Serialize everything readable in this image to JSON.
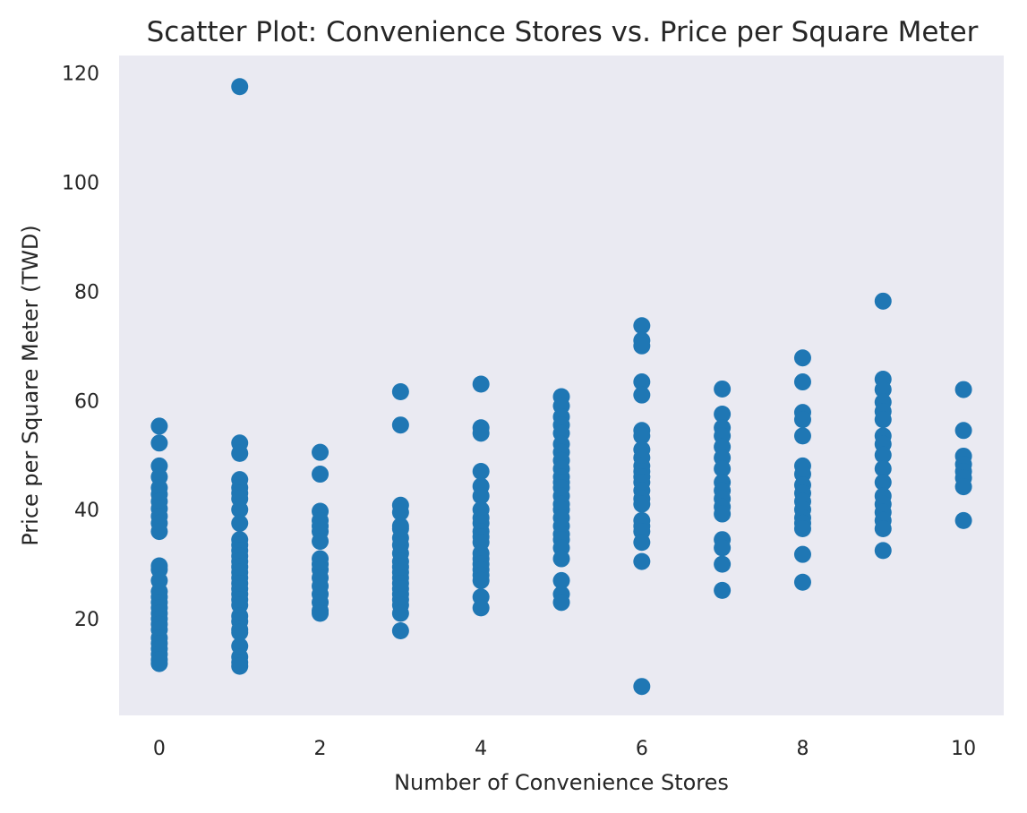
{
  "chart_data": {
    "type": "scatter",
    "title": "Scatter Plot: Convenience Stores vs. Price per Square Meter",
    "xlabel": "Number of Convenience Stores",
    "ylabel": "Price per Square Meter (TWD)",
    "xlim": [
      -0.5,
      10.5
    ],
    "ylim": [
      2.3,
      123.2
    ],
    "xticks": [
      "0",
      "2",
      "4",
      "6",
      "8",
      "10"
    ],
    "yticks": [
      "20",
      "40",
      "60",
      "80",
      "100",
      "120"
    ],
    "grid": false,
    "colors": {
      "point": "#1f77b4",
      "plot_background": "#eaeaf2"
    },
    "points": [
      {
        "x": 0,
        "y": [
          55.3,
          52.2,
          48.0,
          46.0,
          44.0,
          42.8,
          41.5,
          40.2,
          38.8,
          37.5,
          36.0,
          29.7,
          29.0,
          27.0,
          25.0,
          24.0,
          23.0,
          22.0,
          21.0,
          20.0,
          19.0,
          18.0,
          16.5,
          15.5,
          14.5,
          13.5,
          12.5,
          11.8
        ]
      },
      {
        "x": 1,
        "y": [
          117.5,
          52.2,
          50.3,
          45.5,
          44.0,
          43.0,
          42.0,
          40.0,
          37.5,
          34.5,
          33.5,
          32.5,
          31.5,
          30.5,
          29.5,
          28.5,
          27.5,
          26.5,
          25.5,
          24.5,
          23.5,
          22.5,
          20.5,
          19.5,
          18.0,
          17.5,
          15.0,
          13.0,
          12.0,
          11.3
        ]
      },
      {
        "x": 2,
        "y": [
          50.5,
          46.5,
          39.7,
          38.0,
          37.0,
          36.0,
          34.2,
          31.0,
          30.0,
          29.0,
          27.5,
          26.0,
          24.5,
          23.0,
          21.5,
          21.0
        ]
      },
      {
        "x": 3,
        "y": [
          61.6,
          55.5,
          40.8,
          39.5,
          37.0,
          36.5,
          34.8,
          33.5,
          32.0,
          30.5,
          29.5,
          28.5,
          27.5,
          26.5,
          25.5,
          24.5,
          23.5,
          22.5,
          21.0,
          17.8
        ]
      },
      {
        "x": 4,
        "y": [
          63.0,
          55.0,
          54.0,
          47.0,
          44.3,
          42.5,
          40.0,
          38.5,
          37.5,
          36.0,
          35.0,
          34.0,
          32.0,
          31.0,
          30.0,
          29.0,
          28.0,
          27.0,
          24.0,
          22.0
        ]
      },
      {
        "x": 5,
        "y": [
          60.7,
          59.0,
          57.0,
          55.5,
          54.0,
          52.0,
          50.5,
          49.0,
          47.5,
          46.0,
          45.0,
          44.0,
          42.5,
          41.0,
          40.0,
          38.5,
          37.0,
          35.5,
          34.5,
          33.0,
          31.0,
          27.0,
          24.5,
          23.0
        ]
      },
      {
        "x": 6,
        "y": [
          73.7,
          71.0,
          70.0,
          63.4,
          61.0,
          54.5,
          53.5,
          51.0,
          49.5,
          48.0,
          47.0,
          46.0,
          45.0,
          43.5,
          42.0,
          41.0,
          38.0,
          37.0,
          36.0,
          34.0,
          30.5,
          7.6
        ]
      },
      {
        "x": 7,
        "y": [
          62.1,
          57.5,
          55.0,
          53.5,
          51.5,
          49.5,
          47.5,
          45.0,
          43.5,
          42.0,
          40.5,
          39.2,
          34.5,
          33.0,
          30.0,
          25.2
        ]
      },
      {
        "x": 8,
        "y": [
          67.8,
          63.4,
          57.8,
          56.5,
          53.5,
          48.0,
          46.5,
          44.5,
          43.0,
          41.5,
          40.0,
          38.5,
          37.5,
          36.5,
          31.8,
          26.7
        ]
      },
      {
        "x": 9,
        "y": [
          78.2,
          63.9,
          62.0,
          59.7,
          58.0,
          56.5,
          53.5,
          52.0,
          50.0,
          47.5,
          45.0,
          42.5,
          41.0,
          39.5,
          38.0,
          36.5,
          32.5
        ]
      },
      {
        "x": 10,
        "y": [
          62.0,
          54.5,
          49.8,
          48.3,
          47.0,
          45.8,
          44.2,
          38.0
        ]
      }
    ]
  }
}
